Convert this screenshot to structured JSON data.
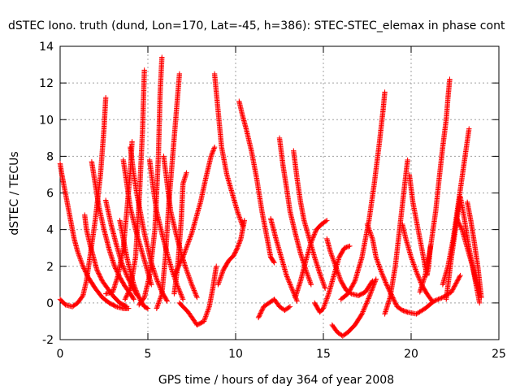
{
  "chart_data": {
    "type": "scatter",
    "title": "dSTEC Iono. truth (dund, Lon=170, Lat=-45, h=386): STEC-STEC_elemax in phase cont",
    "xlabel": "GPS time / hours of day 364 of year 2008",
    "ylabel": "dSTEC  / TECUs",
    "xlim": [
      0,
      25
    ],
    "ylim": [
      -2,
      14
    ],
    "xticks": [
      0,
      5,
      10,
      15,
      20,
      25
    ],
    "yticks": [
      -2,
      0,
      2,
      4,
      6,
      8,
      10,
      12,
      14
    ],
    "grid": true,
    "marker": "plus",
    "color": "#ff0000",
    "series": [
      {
        "x": [
          0.0,
          0.3,
          0.7,
          1.0,
          1.3,
          1.5,
          1.7,
          2.0,
          2.3,
          2.5,
          2.6
        ],
        "y": [
          0.2,
          -0.1,
          -0.2,
          0.0,
          0.4,
          1.2,
          2.5,
          4.5,
          7.0,
          9.5,
          11.2
        ]
      },
      {
        "x": [
          0.0,
          0.1,
          0.2,
          0.4,
          0.6,
          0.8,
          1.0,
          1.3,
          1.6,
          2.0,
          2.4,
          2.8,
          3.2,
          3.6,
          3.9
        ],
        "y": [
          7.6,
          7.0,
          6.5,
          5.5,
          4.5,
          3.5,
          2.8,
          2.0,
          1.4,
          0.8,
          0.3,
          0.0,
          -0.2,
          -0.3,
          -0.3
        ]
      },
      {
        "x": [
          1.4,
          1.5,
          1.7,
          1.9,
          2.1,
          2.4,
          2.7,
          3.0,
          3.4,
          3.8
        ],
        "y": [
          4.8,
          4.0,
          3.2,
          2.5,
          1.8,
          1.2,
          0.8,
          0.4,
          0.0,
          -0.2
        ]
      },
      {
        "x": [
          1.8,
          2.0,
          2.2,
          2.5,
          2.8,
          3.1,
          3.4,
          3.7,
          4.0,
          4.2
        ],
        "y": [
          7.7,
          6.5,
          5.3,
          4.0,
          2.9,
          2.0,
          1.4,
          0.9,
          0.5,
          0.2
        ]
      },
      {
        "x": [
          2.6,
          2.9,
          3.2,
          3.5,
          3.8,
          4.1,
          4.4
        ],
        "y": [
          5.6,
          4.3,
          3.2,
          2.2,
          1.5,
          0.9,
          0.4
        ]
      },
      {
        "x": [
          2.6,
          3.0,
          3.3,
          3.6,
          3.8,
          4.0,
          4.1
        ],
        "y": [
          0.5,
          0.6,
          1.5,
          3.0,
          5.0,
          7.2,
          8.8
        ]
      },
      {
        "x": [
          3.4,
          3.6,
          3.8,
          4.0,
          4.2,
          4.4,
          4.6,
          4.8,
          5.0
        ],
        "y": [
          4.5,
          3.5,
          2.5,
          1.7,
          1.0,
          0.5,
          0.1,
          -0.2,
          -0.3
        ]
      },
      {
        "x": [
          3.6,
          3.8,
          4.0,
          4.3,
          4.6,
          4.9,
          5.2
        ],
        "y": [
          7.8,
          6.5,
          5.2,
          4.0,
          3.0,
          2.0,
          1.0
        ]
      },
      {
        "x": [
          3.7,
          4.0,
          4.3,
          4.5,
          4.7,
          4.8
        ],
        "y": [
          0.2,
          0.8,
          2.5,
          5.5,
          9.5,
          12.7
        ]
      },
      {
        "x": [
          4.0,
          4.2,
          4.4,
          4.6,
          4.8,
          5.0,
          5.2,
          5.5,
          5.8,
          6.1
        ],
        "y": [
          8.5,
          7.0,
          5.8,
          4.8,
          3.8,
          3.0,
          2.2,
          1.3,
          0.6,
          0.1
        ]
      },
      {
        "x": [
          4.5,
          4.8,
          5.1,
          5.4,
          5.6,
          5.7,
          5.8
        ],
        "y": [
          -0.1,
          0.3,
          1.5,
          4.0,
          8.0,
          11.5,
          13.4
        ]
      },
      {
        "x": [
          5.1,
          5.3,
          5.5,
          5.8,
          6.1,
          6.4,
          6.7,
          7.0
        ],
        "y": [
          7.8,
          6.3,
          5.0,
          3.8,
          2.7,
          1.7,
          0.9,
          0.2
        ]
      },
      {
        "x": [
          5.5,
          5.8,
          6.0,
          6.2,
          6.5,
          6.8
        ],
        "y": [
          -0.3,
          0.5,
          2.5,
          5.5,
          9.0,
          12.5
        ]
      },
      {
        "x": [
          5.9,
          6.1,
          6.3,
          6.6,
          6.9,
          7.2,
          7.5,
          7.8
        ],
        "y": [
          8.0,
          6.5,
          5.0,
          3.8,
          2.7,
          1.8,
          1.0,
          0.3
        ]
      },
      {
        "x": [
          6.5,
          6.7,
          6.9,
          7.0,
          7.2
        ],
        "y": [
          0.5,
          2.0,
          4.5,
          6.5,
          7.1
        ]
      },
      {
        "x": [
          6.8,
          7.3,
          7.8,
          8.2,
          8.5,
          8.7,
          8.9
        ],
        "y": [
          0.0,
          -0.5,
          -1.2,
          -1.0,
          -0.2,
          0.8,
          2.0
        ]
      },
      {
        "x": [
          6.5,
          7.0,
          7.5,
          8.0,
          8.3,
          8.6,
          8.8
        ],
        "y": [
          1.5,
          2.5,
          3.8,
          5.5,
          6.8,
          8.0,
          8.5
        ]
      },
      {
        "x": [
          8.8,
          9.0,
          9.2,
          9.5,
          9.8,
          10.1,
          10.4
        ],
        "y": [
          12.5,
          10.5,
          8.5,
          7.0,
          6.0,
          5.0,
          4.2
        ]
      },
      {
        "x": [
          9.0,
          9.3,
          9.6,
          9.9,
          10.1,
          10.3,
          10.5
        ],
        "y": [
          1.0,
          1.8,
          2.3,
          2.6,
          3.0,
          3.5,
          4.5
        ]
      },
      {
        "x": [
          10.2,
          10.4,
          10.6,
          10.9,
          11.2,
          11.5,
          11.8,
          12.0,
          12.2
        ],
        "y": [
          11.0,
          10.2,
          9.5,
          8.3,
          6.8,
          5.0,
          3.5,
          2.5,
          2.2
        ]
      },
      {
        "x": [
          11.3,
          11.6,
          11.9,
          12.2,
          12.5,
          12.8,
          13.1
        ],
        "y": [
          -0.8,
          -0.2,
          0.0,
          0.2,
          -0.2,
          -0.4,
          -0.2
        ]
      },
      {
        "x": [
          12.0,
          12.3,
          12.6,
          12.9,
          13.2,
          13.5
        ],
        "y": [
          4.6,
          3.5,
          2.5,
          1.5,
          0.8,
          0.1
        ]
      },
      {
        "x": [
          12.5,
          12.7,
          12.9,
          13.1,
          13.4,
          13.7,
          14.0,
          14.3
        ],
        "y": [
          9.0,
          7.5,
          6.3,
          5.0,
          3.8,
          2.7,
          1.8,
          1.0
        ]
      },
      {
        "x": [
          13.3,
          13.5,
          13.7,
          13.9,
          14.2,
          14.5,
          14.8,
          15.1
        ],
        "y": [
          8.3,
          6.8,
          5.5,
          4.5,
          3.5,
          2.5,
          1.6,
          0.8
        ]
      },
      {
        "x": [
          13.4,
          13.7,
          14.0,
          14.3,
          14.6,
          14.9,
          15.2
        ],
        "y": [
          0.3,
          1.2,
          2.3,
          3.3,
          4.0,
          4.3,
          4.5
        ]
      },
      {
        "x": [
          14.5,
          14.8,
          15.0,
          15.3,
          15.6,
          15.9,
          16.2,
          16.5
        ],
        "y": [
          0.0,
          -0.5,
          -0.3,
          0.5,
          1.5,
          2.5,
          3.0,
          3.1
        ]
      },
      {
        "x": [
          15.2,
          15.4,
          15.7,
          16.0,
          16.3,
          16.6,
          17.0,
          17.4,
          17.8
        ],
        "y": [
          3.5,
          2.8,
          2.0,
          1.2,
          0.7,
          0.5,
          0.4,
          0.6,
          1.2
        ]
      },
      {
        "x": [
          15.5,
          15.8,
          16.1,
          16.4,
          16.8,
          17.2,
          17.6,
          18.0
        ],
        "y": [
          -1.2,
          -1.6,
          -1.8,
          -1.6,
          -1.2,
          -0.6,
          0.3,
          1.3
        ]
      },
      {
        "x": [
          16.0,
          16.4,
          16.8,
          17.2,
          17.6,
          17.9,
          18.2,
          18.4,
          18.5
        ],
        "y": [
          0.2,
          0.5,
          1.2,
          2.5,
          4.5,
          6.5,
          8.8,
          10.5,
          11.5
        ]
      },
      {
        "x": [
          17.5,
          17.8,
          18.0,
          18.3,
          18.6,
          18.9,
          19.2,
          19.5,
          19.8
        ],
        "y": [
          4.3,
          3.5,
          2.5,
          1.7,
          1.0,
          0.4,
          -0.2,
          -0.4,
          -0.5
        ]
      },
      {
        "x": [
          18.5,
          18.8,
          19.1,
          19.4,
          19.7,
          19.8
        ],
        "y": [
          -0.6,
          0.3,
          2.0,
          4.5,
          7.0,
          7.8
        ]
      },
      {
        "x": [
          19.5,
          19.7,
          20.0,
          20.3,
          20.6,
          20.9,
          21.2
        ],
        "y": [
          4.3,
          3.5,
          2.5,
          1.7,
          1.0,
          0.5,
          0.1
        ]
      },
      {
        "x": [
          19.8,
          20.3,
          20.8,
          21.3,
          21.8,
          22.3,
          22.8
        ],
        "y": [
          -0.5,
          -0.6,
          -0.3,
          0.1,
          0.3,
          0.6,
          1.5
        ]
      },
      {
        "x": [
          19.9,
          20.1,
          20.4,
          20.7,
          20.9,
          21.0,
          21.1
        ],
        "y": [
          7.0,
          5.5,
          4.0,
          2.5,
          1.5,
          2.0,
          3.1
        ]
      },
      {
        "x": [
          20.5,
          20.8,
          21.1,
          21.4,
          21.6,
          21.8,
          22.0,
          22.1,
          22.2
        ],
        "y": [
          0.6,
          1.5,
          3.0,
          5.0,
          6.8,
          8.5,
          10.0,
          11.2,
          12.2
        ]
      },
      {
        "x": [
          21.8,
          22.1,
          22.4,
          22.7,
          23.0,
          23.3
        ],
        "y": [
          1.0,
          2.0,
          3.5,
          5.5,
          7.5,
          9.5
        ]
      },
      {
        "x": [
          22.0,
          22.3,
          22.6,
          22.8,
          23.0,
          23.3,
          23.6,
          23.9
        ],
        "y": [
          0.2,
          2.5,
          4.5,
          5.8,
          4.8,
          3.0,
          1.5,
          0.0
        ]
      },
      {
        "x": [
          22.6,
          22.9,
          23.2,
          23.5,
          23.7,
          23.9
        ],
        "y": [
          4.6,
          4.0,
          3.0,
          2.0,
          1.2,
          0.5
        ]
      },
      {
        "x": [
          23.2,
          23.4,
          23.6,
          23.8,
          24.0
        ],
        "y": [
          5.5,
          4.5,
          3.3,
          2.0,
          0.3
        ]
      }
    ]
  }
}
